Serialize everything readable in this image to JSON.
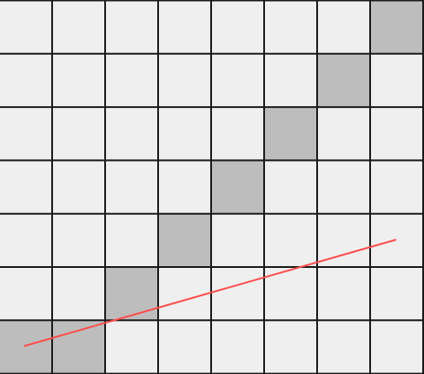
{
  "grid": {
    "cols": 8,
    "rows": 7,
    "cell_fill": "#efefef",
    "highlight_fill": "#bdbdbd",
    "line_color": "#1a1a1a",
    "highlighted_cells": [
      {
        "col": 7,
        "row": 0
      },
      {
        "col": 6,
        "row": 1
      },
      {
        "col": 5,
        "row": 2
      },
      {
        "col": 4,
        "row": 3
      },
      {
        "col": 3,
        "row": 4
      },
      {
        "col": 2,
        "row": 5
      },
      {
        "col": 1,
        "row": 6
      },
      {
        "col": 0,
        "row": 6
      }
    ]
  },
  "line": {
    "color": "#ff4d4d",
    "from": {
      "col": 0.48,
      "row": 6.48
    },
    "to": {
      "col": 7.48,
      "row": 4.49
    }
  }
}
